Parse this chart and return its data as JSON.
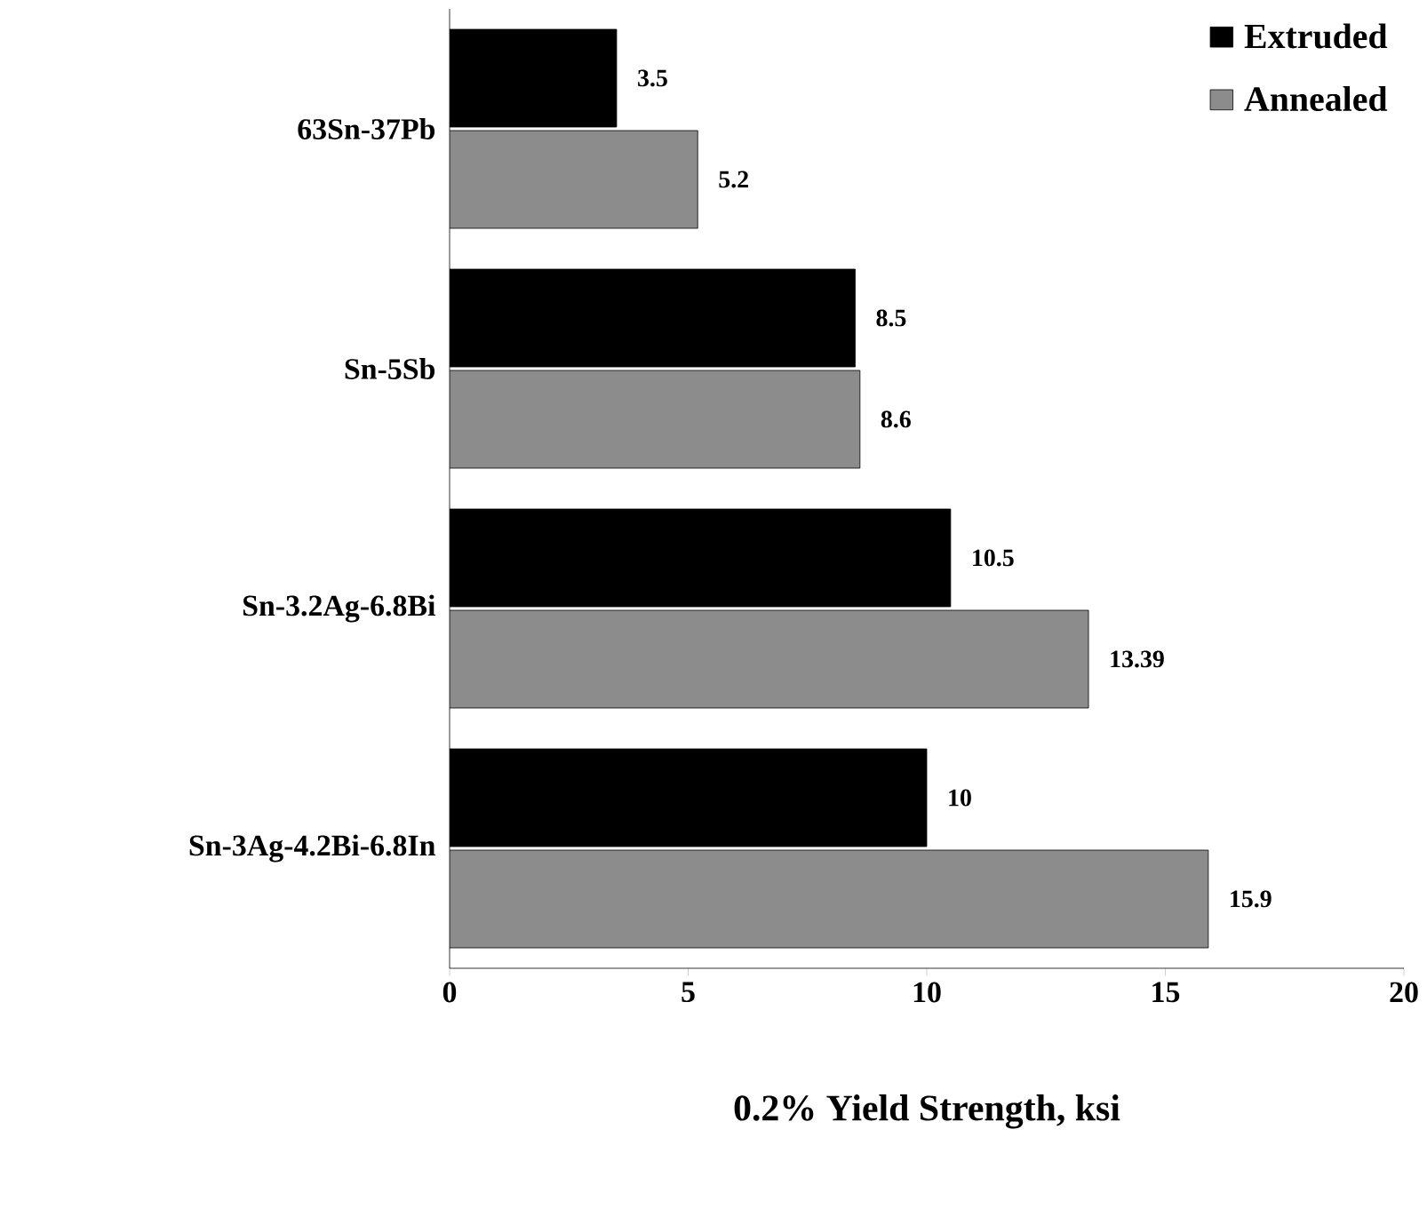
{
  "chart_data": {
    "type": "bar",
    "orientation": "horizontal",
    "xlabel": "0.2% Yield Strength, ksi",
    "categories": [
      "63Sn-37Pb",
      "Sn-5Sb",
      "Sn-3.2Ag-6.8Bi",
      "Sn-3Ag-4.2Bi-6.8In"
    ],
    "series": [
      {
        "name": "Extruded",
        "color": "#000000",
        "values": [
          3.5,
          8.5,
          10.5,
          10
        ],
        "value_labels": [
          "3.5",
          "8.5",
          "10.5",
          "10"
        ]
      },
      {
        "name": "Annealed",
        "color": "#8c8c8c",
        "values": [
          5.2,
          8.6,
          13.39,
          15.9
        ],
        "value_labels": [
          "5.2",
          "8.6",
          "13.39",
          "15.9"
        ]
      }
    ],
    "xlim": [
      0,
      20
    ],
    "xticks": [
      0,
      5,
      10,
      15,
      20
    ],
    "grid": false,
    "legend": "top right"
  }
}
